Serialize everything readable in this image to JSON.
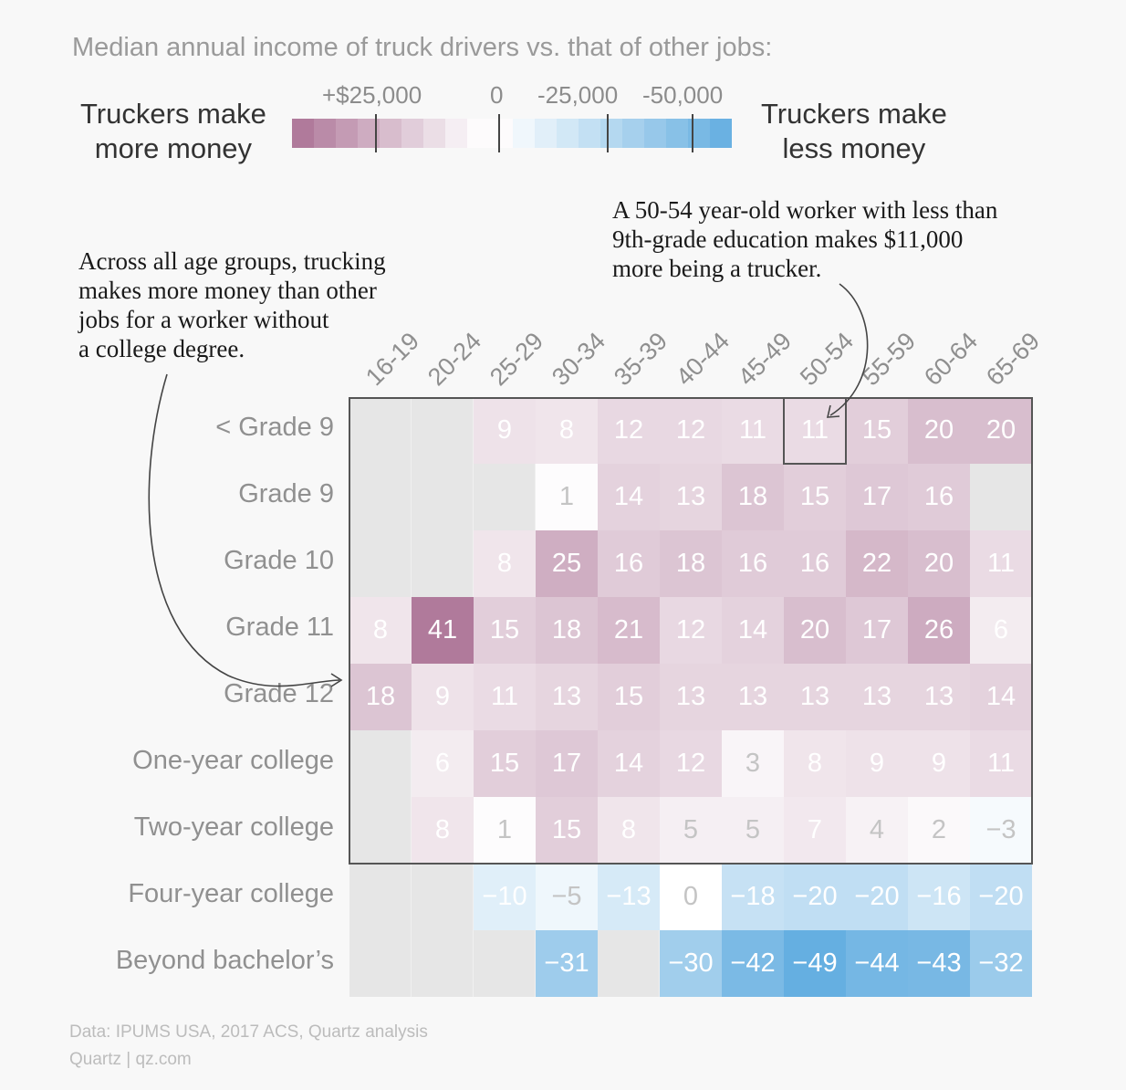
{
  "chart_data": {
    "type": "heatmap",
    "title": "Median annual income of truck drivers vs. that of other jobs:",
    "units": "thousands of dollars (trucker income minus other jobs)",
    "columns": [
      "16-19",
      "20-24",
      "25-29",
      "30-34",
      "35-39",
      "40-44",
      "45-49",
      "50-54",
      "55-59",
      "60-64",
      "65-69"
    ],
    "rows": [
      "< Grade 9",
      "Grade 9",
      "Grade 10",
      "Grade 11",
      "Grade 12",
      "One-year college",
      "Two-year college",
      "Four-year college",
      "Beyond bachelor’s"
    ],
    "values": [
      [
        null,
        null,
        9,
        8,
        12,
        12,
        11,
        11,
        15,
        20,
        20
      ],
      [
        null,
        null,
        null,
        1,
        14,
        13,
        18,
        15,
        17,
        16,
        null
      ],
      [
        null,
        null,
        8,
        25,
        16,
        18,
        16,
        16,
        22,
        20,
        11
      ],
      [
        8,
        41,
        15,
        18,
        21,
        12,
        14,
        20,
        17,
        26,
        6
      ],
      [
        18,
        9,
        11,
        13,
        15,
        13,
        13,
        13,
        13,
        13,
        14
      ],
      [
        null,
        6,
        15,
        17,
        14,
        12,
        3,
        8,
        9,
        9,
        11
      ],
      [
        null,
        8,
        1,
        15,
        8,
        5,
        5,
        7,
        4,
        2,
        -3
      ],
      [
        null,
        null,
        -10,
        -5,
        -13,
        0,
        -18,
        -20,
        -20,
        -16,
        -20
      ],
      [
        null,
        null,
        null,
        -31,
        null,
        -30,
        -42,
        -49,
        -44,
        -43,
        -32
      ]
    ],
    "value_labels": [
      [
        "",
        "",
        "9",
        "8",
        "12",
        "12",
        "11",
        "11",
        "15",
        "20",
        "20"
      ],
      [
        "",
        "",
        "",
        "1",
        "14",
        "13",
        "18",
        "15",
        "17",
        "16",
        ""
      ],
      [
        "",
        "",
        "8",
        "25",
        "16",
        "18",
        "16",
        "16",
        "22",
        "20",
        "11"
      ],
      [
        "8",
        "41",
        "15",
        "18",
        "21",
        "12",
        "14",
        "20",
        "17",
        "26",
        "6"
      ],
      [
        "18",
        "9",
        "11",
        "13",
        "15",
        "13",
        "13",
        "13",
        "13",
        "13",
        "14"
      ],
      [
        "",
        "6",
        "15",
        "17",
        "14",
        "12",
        "3",
        "8",
        "9",
        "9",
        "11"
      ],
      [
        "",
        "8",
        "1",
        "15",
        "8",
        "5",
        "5",
        "7",
        "4",
        "2",
        "−3"
      ],
      [
        "",
        "",
        "−10",
        "−5",
        "−13",
        "0",
        "−18",
        "−20",
        "−20",
        "−16",
        "−20"
      ],
      [
        "",
        "",
        "",
        "−31",
        "",
        "−30",
        "−42",
        "−49",
        "−44",
        "−43",
        "−32"
      ]
    ],
    "highlighted_cell": {
      "row": "< Grade 9",
      "column": "50-54",
      "value": 11
    },
    "legend": {
      "left_label": "Truckers make more money",
      "right_label": "Truckers make less money",
      "ticks": [
        "+$25,000",
        "0",
        "-25,000",
        "-50,000"
      ],
      "tick_values": [
        25000,
        0,
        -25000,
        -50000
      ],
      "color_more": "#b07a9b",
      "color_less": "#62ade0",
      "color_zero": "#ffffff",
      "color_missing": "#e6e6e6"
    }
  },
  "header": {
    "title": "Median annual income of truck drivers vs. that of other jobs:",
    "legend_left_line1": "Truckers make",
    "legend_left_line2": "more money",
    "legend_right_line1": "Truckers make",
    "legend_right_line2": "less money",
    "tick_plus25": "+$25,000",
    "tick_zero": "0",
    "tick_minus25": "-25,000",
    "tick_minus50": "-50,000"
  },
  "annotations": {
    "left": [
      "Across all age groups, trucking",
      "makes more money than other",
      "jobs for a worker without",
      "a college degree."
    ],
    "right": [
      "A 50-54 year-old worker with less than",
      "9th-grade education makes $11,000",
      "more being a trucker."
    ]
  },
  "footer": {
    "source": "Data: IPUMS USA, 2017 ACS, Quartz analysis",
    "credit": "Quartz | qz.com"
  }
}
